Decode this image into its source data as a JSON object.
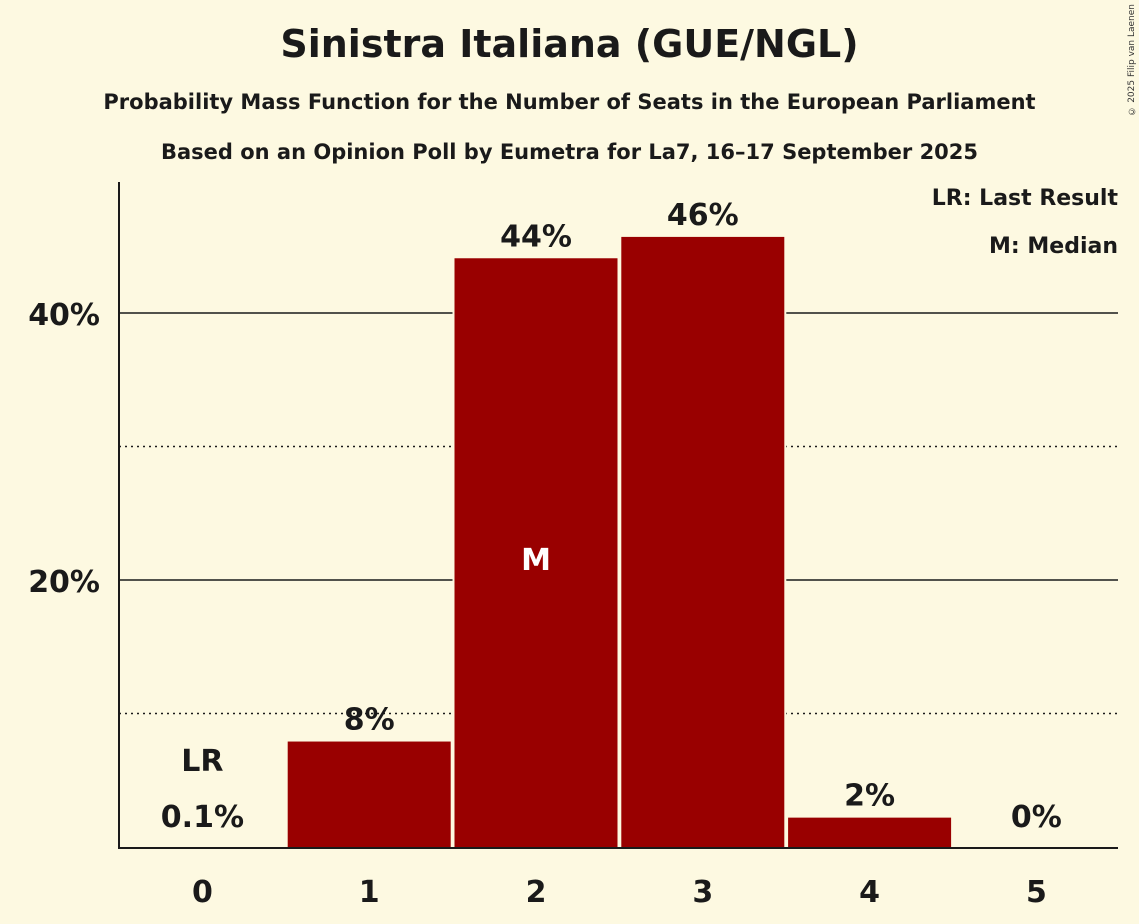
{
  "title": "Sinistra Italiana (GUE/NGL)",
  "subtitle": "Probability Mass Function for the Number of Seats in the European Parliament",
  "subtitle2": "Based on an Opinion Poll by Eumetra for La7, 16–17 September 2025",
  "copyright": "© 2025 Filip van Laenen",
  "legend": {
    "lr": "LR: Last Result",
    "m": "M: Median"
  },
  "colors": {
    "bar": "#990000",
    "background": "#fdf9e1",
    "text": "#1a1a1a"
  },
  "chart_data": {
    "type": "bar",
    "title": "Sinistra Italiana (GUE/NGL)",
    "subtitle": "Probability Mass Function for the Number of Seats in the European Parliament",
    "xlabel": "",
    "ylabel": "",
    "categories": [
      "0",
      "1",
      "2",
      "3",
      "4",
      "5"
    ],
    "values": [
      0.1,
      7.9,
      44.1,
      45.7,
      2.2,
      0
    ],
    "value_labels": [
      "0.1%",
      "8%",
      "44%",
      "46%",
      "2%",
      "0%"
    ],
    "ylim": [
      0,
      50
    ],
    "yticks": [
      20,
      40
    ],
    "ytick_labels": [
      "20%",
      "40%"
    ],
    "minor_gridlines": [
      10,
      30
    ],
    "annotations": [
      {
        "category": "0",
        "label": "LR",
        "meaning": "Last Result"
      },
      {
        "category": "2",
        "label": "M",
        "meaning": "Median"
      }
    ],
    "legend_position": "top-right"
  }
}
